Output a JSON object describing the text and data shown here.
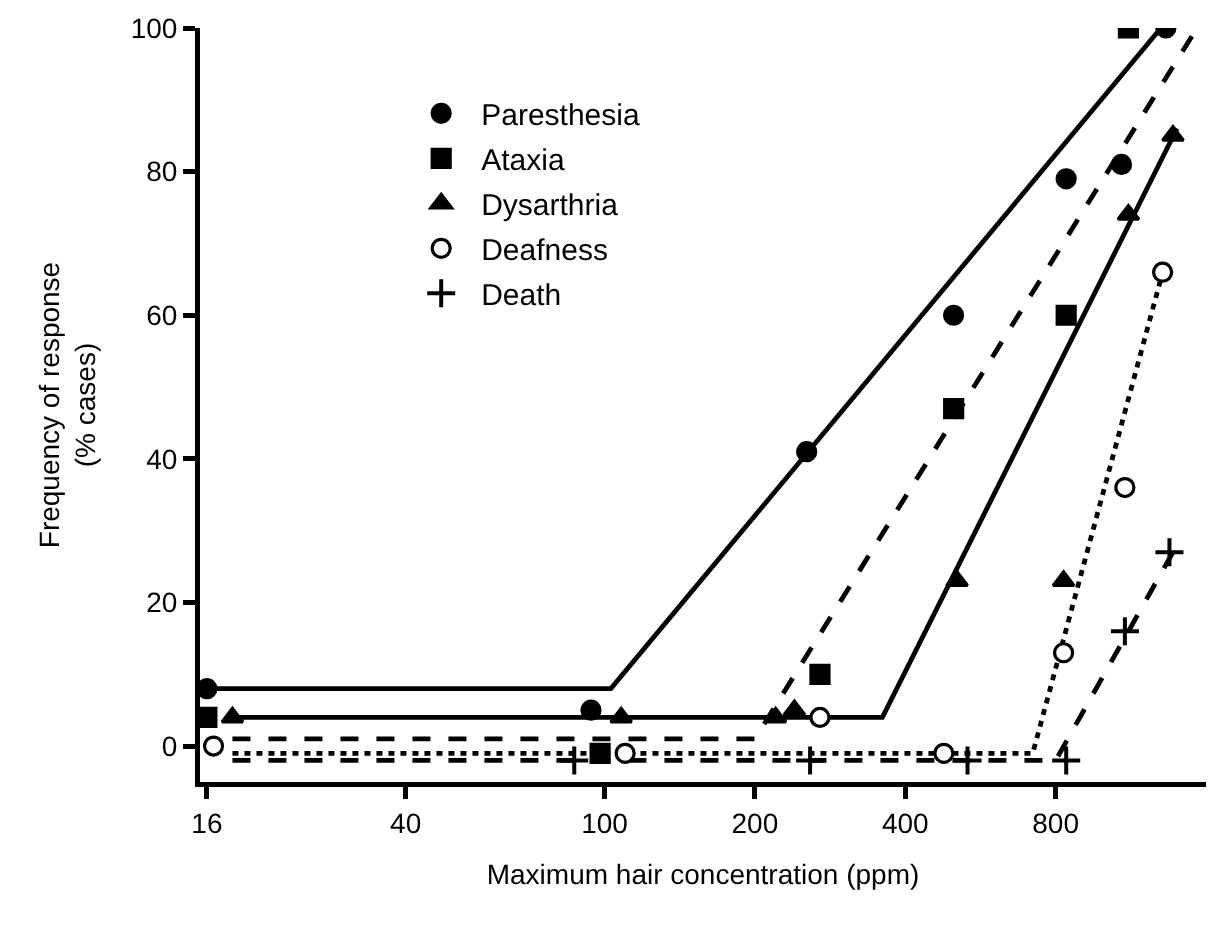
{
  "chart_data": {
    "type": "scatter",
    "xlabel": "Maximum hair concentration (ppm)",
    "ylabel": "Frequency of response\n(% cases)",
    "log": "x",
    "xlim": [
      15.5,
      1600
    ],
    "xticks": [
      16,
      40,
      100,
      200,
      400,
      800
    ],
    "ylim": [
      -5,
      100
    ],
    "yticks": [
      0,
      20,
      40,
      60,
      80,
      100
    ],
    "grid": false,
    "legend": "top left",
    "series": [
      {
        "name": "Paresthesia",
        "marker": "circle",
        "color": "#000000",
        "x": [
          16,
          94,
          254,
          500,
          840,
          1084,
          1330
        ],
        "values": [
          8,
          5,
          41,
          60,
          79,
          81,
          100
        ]
      },
      {
        "name": "Ataxia",
        "marker": "square",
        "color": "#000000",
        "x": [
          16,
          98,
          270,
          500,
          840,
          1119
        ],
        "values": [
          4,
          -1,
          10,
          47,
          60,
          100
        ]
      },
      {
        "name": "Dysarthria",
        "marker": "triangle",
        "color": "#000000",
        "x": [
          18,
          108,
          220,
          240,
          508,
          830,
          1119,
          1374
        ],
        "values": [
          4,
          4,
          4,
          5,
          23,
          23,
          74,
          85
        ]
      },
      {
        "name": "Deafness",
        "marker": "circle",
        "color": "#ffffff",
        "x": [
          16.5,
          110,
          270,
          478,
          830,
          1101,
          1310
        ],
        "values": [
          0,
          -1,
          4,
          -1,
          13,
          36,
          66
        ]
      },
      {
        "name": "Death",
        "marker": "cross",
        "color": "#000000",
        "x": [
          87,
          258,
          533,
          840,
          1101,
          1352
        ],
        "values": [
          -2,
          -2,
          -2,
          -2,
          16,
          27
        ]
      },
      {
        "type": "line",
        "line_style": "solid",
        "color": "#000000",
        "x": [
          16,
          103,
          1300
        ],
        "values": [
          8,
          8,
          100
        ]
      },
      {
        "type": "line",
        "line_style": "dashed",
        "color": "#000000",
        "x": [
          18,
          200,
          1535
        ],
        "values": [
          1,
          1,
          100
        ]
      },
      {
        "type": "line",
        "line_style": "solid",
        "color": "#000000",
        "x": [
          18,
          360,
          1400
        ],
        "values": [
          4,
          4,
          86
        ]
      },
      {
        "type": "line",
        "line_style": "dotted",
        "color": "#000000",
        "x": [
          18,
          720,
          1310
        ],
        "values": [
          -1,
          -1,
          66
        ]
      },
      {
        "type": "line",
        "line_style": "dashed",
        "color": "#000000",
        "x": [
          18,
          800,
          1400
        ],
        "values": [
          -2,
          -2,
          28
        ]
      }
    ]
  }
}
